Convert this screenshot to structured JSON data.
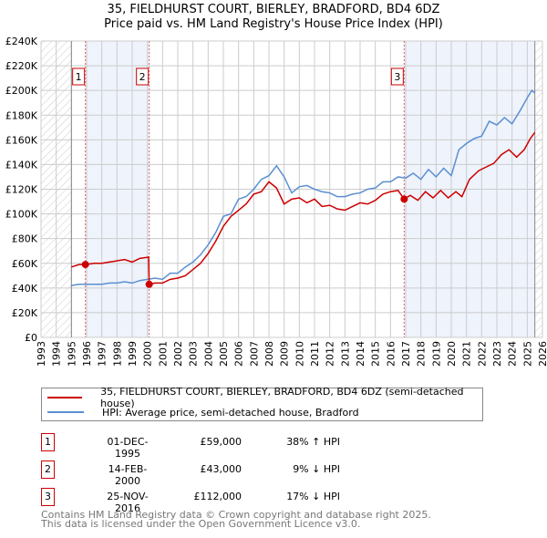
{
  "header": {
    "title": "35, FIELDHURST COURT, BIERLEY, BRADFORD, BD4 6DZ",
    "subtitle": "Price paid vs. HM Land Registry's House Price Index (HPI)"
  },
  "chart_data": {
    "type": "line",
    "title": "35, FIELDHURST COURT, BIERLEY, BRADFORD, BD4 6DZ",
    "subtitle": "Price paid vs. HM Land Registry's House Price Index (HPI)",
    "xlim": [
      1993,
      2026
    ],
    "ylim": [
      0,
      240000
    ],
    "x_ticks": [
      "1993",
      "1994",
      "1995",
      "1996",
      "1997",
      "1998",
      "1999",
      "2000",
      "2001",
      "2002",
      "2003",
      "2004",
      "2005",
      "2006",
      "2007",
      "2008",
      "2009",
      "2010",
      "2011",
      "2012",
      "2013",
      "2014",
      "2015",
      "2016",
      "2017",
      "2018",
      "2019",
      "2020",
      "2021",
      "2022",
      "2023",
      "2024",
      "2025",
      "2026"
    ],
    "y_ticks": [
      "£0",
      "£20K",
      "£40K",
      "£60K",
      "£80K",
      "£100K",
      "£120K",
      "£140K",
      "£160K",
      "£180K",
      "£200K",
      "£220K",
      "£240K"
    ],
    "grid": true,
    "colors": {
      "property": "#cc0000",
      "hpi": "#5b8fd1",
      "shade": "#eef3fc"
    },
    "series": [
      {
        "name": "35, FIELDHURST COURT, BIERLEY, BRADFORD, BD4 6DZ (semi-detached house)",
        "color": "#cc0000",
        "x": [
          1995,
          1995.5,
          1995.92,
          1996.5,
          1997,
          1997.5,
          1998,
          1998.5,
          1999,
          1999.5,
          2000.08,
          2000.12,
          2000.5,
          2001,
          2001.5,
          2002,
          2002.5,
          2003,
          2003.5,
          2004,
          2004.5,
          2005,
          2005.5,
          2006,
          2006.5,
          2007,
          2007.5,
          2008,
          2008.5,
          2009,
          2009.5,
          2010,
          2010.5,
          2011,
          2011.5,
          2012,
          2012.5,
          2013,
          2013.5,
          2014,
          2014.5,
          2015,
          2015.5,
          2016,
          2016.5,
          2016.9,
          2017.3,
          2017.8,
          2018.3,
          2018.8,
          2019.3,
          2019.8,
          2020.3,
          2020.7,
          2021.2,
          2021.8,
          2022.3,
          2022.8,
          2023.3,
          2023.8,
          2024.3,
          2024.8,
          2025.2,
          2025.5
        ],
        "y": [
          57000,
          59000,
          59000,
          60000,
          60000,
          61000,
          62000,
          63000,
          61000,
          64000,
          65000,
          43000,
          44000,
          44000,
          47000,
          48000,
          50000,
          55000,
          60000,
          68000,
          78000,
          90000,
          98000,
          103000,
          108000,
          116000,
          118000,
          126000,
          121000,
          108000,
          112000,
          113000,
          109000,
          112000,
          106000,
          107000,
          104000,
          103000,
          106000,
          109000,
          108000,
          111000,
          116000,
          118000,
          119000,
          112000,
          115000,
          111000,
          118000,
          113000,
          119000,
          113000,
          118000,
          114000,
          128000,
          135000,
          138000,
          141000,
          148000,
          152000,
          146000,
          152000,
          161000,
          166000
        ]
      },
      {
        "name": "HPI: Average price, semi-detached house, Bradford",
        "color": "#5b8fd1",
        "x": [
          1995,
          1995.5,
          1996,
          1996.5,
          1997,
          1997.5,
          1998,
          1998.5,
          1999,
          1999.5,
          2000,
          2000.5,
          2001,
          2001.5,
          2002,
          2002.5,
          2003,
          2003.5,
          2004,
          2004.5,
          2005,
          2005.5,
          2006,
          2006.5,
          2007,
          2007.5,
          2008,
          2008.5,
          2009,
          2009.5,
          2010,
          2010.5,
          2011,
          2011.5,
          2012,
          2012.5,
          2013,
          2013.5,
          2014,
          2014.5,
          2015,
          2015.5,
          2016,
          2016.5,
          2017,
          2017.5,
          2018,
          2018.5,
          2019,
          2019.5,
          2020,
          2020.5,
          2021,
          2021.5,
          2022,
          2022.5,
          2023,
          2023.5,
          2024,
          2024.5,
          2025,
          2025.3,
          2025.5
        ],
        "y": [
          42000,
          43000,
          43000,
          43000,
          43000,
          44000,
          44000,
          45000,
          44000,
          46000,
          47000,
          48000,
          47000,
          52000,
          52000,
          57000,
          61000,
          67000,
          75000,
          85000,
          98000,
          100000,
          112000,
          114000,
          120000,
          128000,
          131000,
          139000,
          130000,
          117000,
          122000,
          123000,
          120000,
          118000,
          117000,
          114000,
          114000,
          116000,
          117000,
          120000,
          121000,
          126000,
          126000,
          130000,
          129000,
          133000,
          128000,
          136000,
          130000,
          137000,
          131000,
          152000,
          157000,
          161000,
          163000,
          175000,
          172000,
          178000,
          173000,
          183000,
          194000,
          200000,
          198000
        ]
      }
    ],
    "sales": [
      {
        "label": "1",
        "x": 1995.92,
        "y": 59000
      },
      {
        "label": "2",
        "x": 2000.12,
        "y": 43000
      },
      {
        "label": "3",
        "x": 2016.9,
        "y": 112000
      }
    ],
    "shaded_ranges": [
      [
        1995.92,
        2000.12
      ],
      [
        2016.9,
        2025.5
      ]
    ],
    "hatched_ranges": [
      [
        1993,
        1995
      ],
      [
        2025.5,
        2026
      ]
    ]
  },
  "legend": {
    "items": [
      {
        "label": "35, FIELDHURST COURT, BIERLEY, BRADFORD, BD4 6DZ (semi-detached house)",
        "color": "#cc0000"
      },
      {
        "label": "HPI: Average price, semi-detached house, Bradford",
        "color": "#5b8fd1"
      }
    ]
  },
  "table": [
    {
      "num": "1",
      "date": "01-DEC-1995",
      "price": "£59,000",
      "hpi": "38% ↑ HPI"
    },
    {
      "num": "2",
      "date": "14-FEB-2000",
      "price": "£43,000",
      "hpi": "9% ↓ HPI"
    },
    {
      "num": "3",
      "date": "25-NOV-2016",
      "price": "£112,000",
      "hpi": "17% ↓ HPI"
    }
  ],
  "footer": {
    "line1": "Contains HM Land Registry data © Crown copyright and database right 2025.",
    "line2": "This data is licensed under the Open Government Licence v3.0."
  }
}
